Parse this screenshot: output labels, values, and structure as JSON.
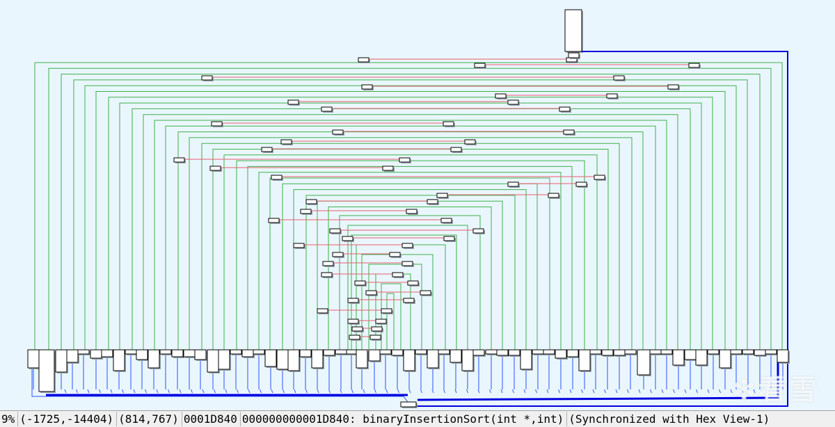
{
  "window": {
    "view": "IDA graph overview",
    "function": "binaryInsertionSort(int *,int)"
  },
  "status_bar": {
    "zoom": "9%",
    "mouse_coords": "(-1725,-14404)",
    "node_coords": "(814,767)",
    "offset": "0001D840",
    "location": "000000000001D840: binaryInsertionSort(int *,int)",
    "sync": "(Synchronized with Hex View-1)"
  },
  "colors": {
    "background": "#eaf6fd",
    "edge_true": "#3cb04a",
    "edge_false": "#e85c6a",
    "edge_uncond": "#2b50ff",
    "edge_highlight": "#0000dd",
    "node_fill": "#ffffff",
    "node_border": "#000000"
  },
  "watermark": {
    "text": "看雪",
    "icon": "snowflake-icon"
  }
}
